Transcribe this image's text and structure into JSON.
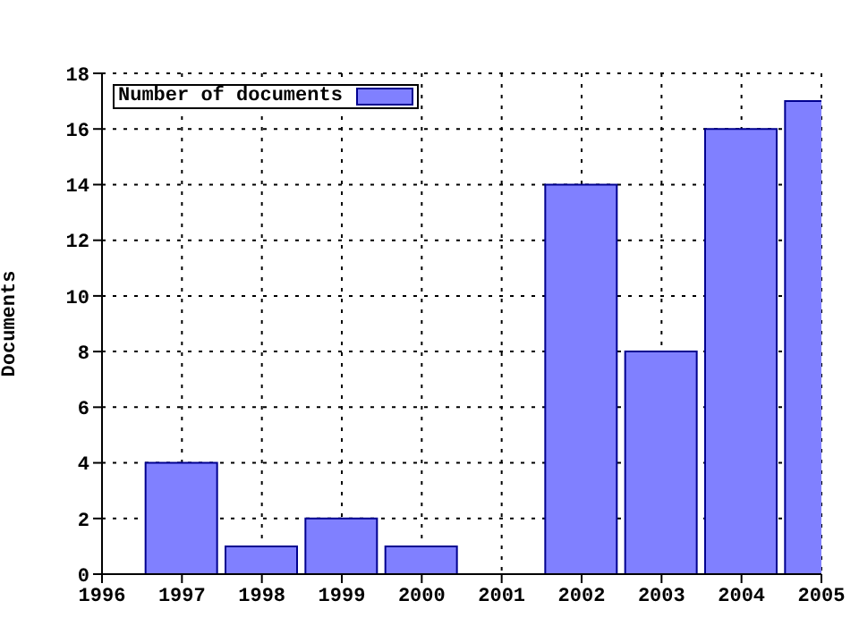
{
  "chart_data": {
    "type": "bar",
    "ylabel": "Documents",
    "x": [
      1997,
      1998,
      1999,
      2000,
      2002,
      2003,
      2004,
      2005
    ],
    "series": [
      {
        "name": "Number of documents",
        "color": "#8080ff",
        "values": [
          4,
          1,
          2,
          1,
          14,
          8,
          16,
          17
        ]
      }
    ],
    "xlim": [
      1996,
      2005
    ],
    "xticks": [
      1996,
      1997,
      1998,
      1999,
      2000,
      2001,
      2002,
      2003,
      2004,
      2005
    ],
    "ylim": [
      0,
      18
    ],
    "yticks": [
      0,
      2,
      4,
      6,
      8,
      10,
      12,
      14,
      16,
      18
    ],
    "grid": true,
    "legend": "top left"
  }
}
